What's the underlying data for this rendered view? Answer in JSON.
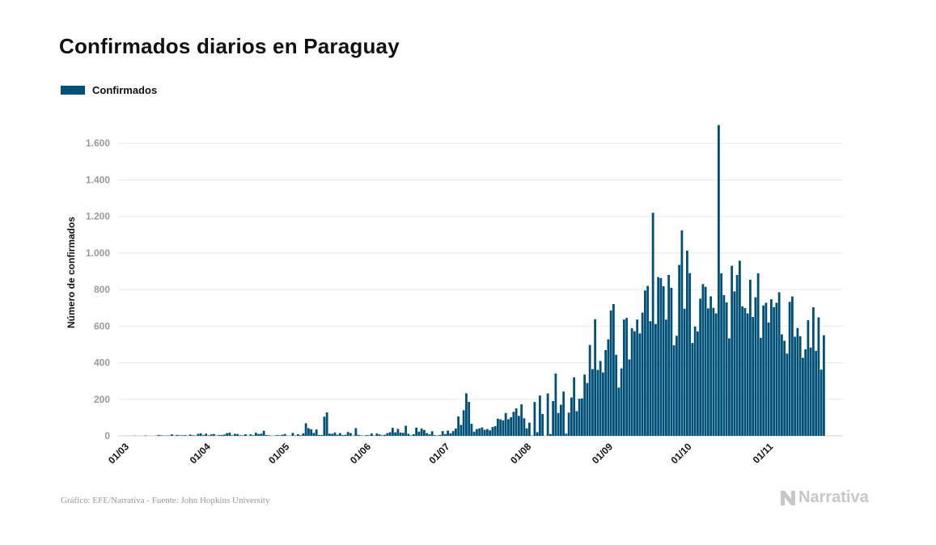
{
  "title": "Confirmados diarios en Paraguay",
  "legend": {
    "label": "Confirmados",
    "color": "#005078"
  },
  "source": "Gráfico: EFE/Narrativa - Fuente: John Hopkins University",
  "brand": {
    "name": "Narrativa",
    "icon": "narrativa-logo-icon",
    "color": "#c7c7c7"
  },
  "chart_data": {
    "type": "bar",
    "ylabel": "Número de confirmados",
    "xlabel": "",
    "ylim": [
      0,
      1800
    ],
    "yticks": [
      0,
      200,
      400,
      600,
      800,
      1000,
      1200,
      1400,
      1600
    ],
    "ytick_labels": [
      "0",
      "200",
      "400",
      "600",
      "800",
      "1.000",
      "1.200",
      "1.400",
      "1.600"
    ],
    "x_start": "01/03",
    "xticks": [
      {
        "day": 0,
        "label": "01/03"
      },
      {
        "day": 31,
        "label": "01/04"
      },
      {
        "day": 61,
        "label": "01/05"
      },
      {
        "day": 92,
        "label": "01/06"
      },
      {
        "day": 122,
        "label": "01/07"
      },
      {
        "day": 153,
        "label": "01/08"
      },
      {
        "day": 184,
        "label": "01/09"
      },
      {
        "day": 214,
        "label": "01/10"
      },
      {
        "day": 245,
        "label": "01/11"
      }
    ],
    "grid": true,
    "legend_position": "top-left",
    "color": "#005078",
    "values": [
      0,
      0,
      0,
      0,
      0,
      0,
      1,
      0,
      0,
      0,
      2,
      0,
      0,
      0,
      1,
      5,
      3,
      1,
      2,
      2,
      8,
      1,
      5,
      3,
      3,
      4,
      1,
      7,
      3,
      2,
      11,
      14,
      4,
      12,
      3,
      8,
      10,
      1,
      4,
      5,
      7,
      15,
      17,
      3,
      11,
      10,
      3,
      3,
      9,
      1,
      8,
      3,
      17,
      10,
      12,
      28,
      4,
      3,
      1,
      1,
      4,
      3,
      6,
      10,
      1,
      1,
      16,
      2,
      9,
      3,
      14,
      69,
      42,
      36,
      16,
      35,
      5,
      5,
      105,
      128,
      12,
      11,
      18,
      6,
      15,
      4,
      6,
      21,
      15,
      1,
      42,
      5,
      2,
      1,
      4,
      3,
      13,
      2,
      13,
      8,
      3,
      6,
      15,
      20,
      44,
      19,
      38,
      18,
      16,
      55,
      11,
      3,
      9,
      45,
      23,
      40,
      32,
      15,
      8,
      25,
      4,
      2,
      5,
      26,
      10,
      29,
      14,
      26,
      40,
      106,
      60,
      140,
      233,
      186,
      66,
      23,
      37,
      41,
      46,
      33,
      37,
      30,
      48,
      53,
      94,
      90,
      85,
      125,
      91,
      102,
      131,
      150,
      109,
      172,
      96,
      41,
      72,
      2,
      185,
      20,
      220,
      120,
      0,
      232,
      10,
      190,
      341,
      125,
      170,
      242,
      12,
      127,
      210,
      320,
      135,
      203,
      205,
      335,
      289,
      497,
      365,
      638,
      361,
      409,
      347,
      469,
      528,
      686,
      721,
      443,
      264,
      369,
      636,
      645,
      418,
      589,
      572,
      636,
      560,
      674,
      795,
      820,
      627,
      1220,
      612,
      868,
      863,
      818,
      636,
      880,
      810,
      495,
      547,
      935,
      1124,
      695,
      1013,
      890,
      508,
      598,
      571,
      750,
      830,
      815,
      697,
      763,
      700,
      670,
      1700,
      889,
      770,
      730,
      533,
      930,
      790,
      880,
      958,
      708,
      699,
      670,
      854,
      650,
      758,
      889,
      536,
      713,
      728,
      620,
      747,
      704,
      728,
      785,
      555,
      520,
      450,
      733,
      762,
      542,
      590,
      545,
      427,
      473,
      633,
      483,
      703,
      465,
      648,
      362,
      550
    ]
  }
}
